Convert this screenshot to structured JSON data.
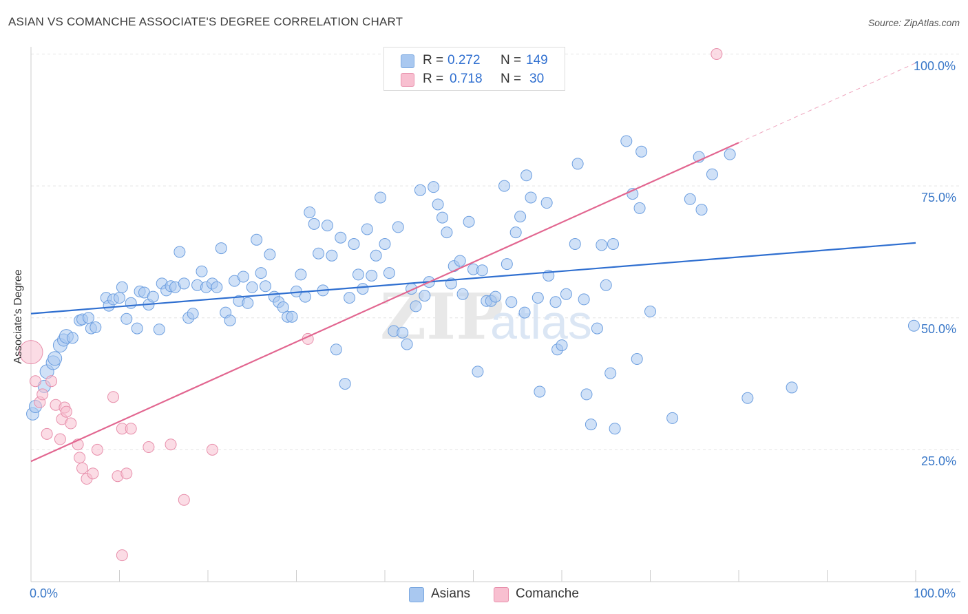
{
  "title": "ASIAN VS COMANCHE ASSOCIATE'S DEGREE CORRELATION CHART",
  "source": "Source: ZipAtlas.com",
  "legend_top": [
    {
      "r_label": "R = ",
      "r_value": "0.272",
      "n_label": "N = ",
      "n_value": "149",
      "color": "#a9c8f0",
      "border": "#7aa8e0"
    },
    {
      "r_label": "R = ",
      "r_value": "0.718",
      "n_label": "N = ",
      "n_value": "30",
      "color": "#f8bfd0",
      "border": "#e890ac"
    }
  ],
  "legend_bottom": [
    {
      "label": "Asians",
      "color": "#a9c8f0",
      "border": "#7aa8e0"
    },
    {
      "label": "Comanche",
      "color": "#f8bfd0",
      "border": "#e890ac"
    }
  ],
  "watermark": {
    "zip": "ZIP",
    "atlas": "atlas"
  },
  "chart_data": {
    "type": "scatter",
    "xlabel": "",
    "ylabel": "Associate's Degree",
    "x_tick_labels": [
      "0.0%",
      "100.0%"
    ],
    "y_tick_labels": [
      "25.0%",
      "50.0%",
      "75.0%",
      "100.0%"
    ],
    "xlim": [
      0,
      100
    ],
    "ylim": [
      0,
      100
    ],
    "y_ticks": [
      25,
      50,
      75,
      100
    ],
    "grid": true,
    "series": [
      {
        "name": "Asians",
        "color": "#a9c8f0",
        "edge": "#6d9fe0",
        "trend": {
          "x0": 0,
          "y0": 50.8,
          "x1": 100,
          "y1": 64.2,
          "color": "#2f6fd0"
        },
        "points": [
          [
            0.2,
            31.8,
            9
          ],
          [
            0.5,
            33.2,
            9
          ],
          [
            1.5,
            37.0,
            9
          ],
          [
            1.8,
            39.8,
            10
          ],
          [
            2.5,
            41.5,
            10
          ],
          [
            2.7,
            42.3,
            10
          ],
          [
            3.3,
            44.8,
            10
          ],
          [
            3.7,
            45.8,
            9
          ],
          [
            4.0,
            46.5,
            10
          ],
          [
            4.7,
            46.2,
            8
          ],
          [
            5.5,
            49.5,
            8
          ],
          [
            5.8,
            49.7,
            8
          ],
          [
            6.5,
            50.0,
            8
          ],
          [
            6.8,
            48.0,
            8
          ],
          [
            7.3,
            48.2,
            8
          ],
          [
            8.5,
            53.8,
            8
          ],
          [
            8.8,
            52.3,
            8
          ],
          [
            9.3,
            53.5,
            8
          ],
          [
            10.0,
            53.8,
            8
          ],
          [
            10.3,
            55.8,
            8
          ],
          [
            10.8,
            49.8,
            8
          ],
          [
            11.3,
            52.8,
            8
          ],
          [
            12.0,
            48.0,
            8
          ],
          [
            12.3,
            55.0,
            8
          ],
          [
            12.8,
            54.8,
            8
          ],
          [
            13.3,
            52.5,
            8
          ],
          [
            13.8,
            54.0,
            8
          ],
          [
            14.5,
            47.8,
            8
          ],
          [
            14.8,
            56.5,
            8
          ],
          [
            15.3,
            55.2,
            8
          ],
          [
            15.8,
            56.0,
            8
          ],
          [
            16.3,
            55.8,
            8
          ],
          [
            16.8,
            62.5,
            8
          ],
          [
            17.3,
            56.5,
            8
          ],
          [
            17.8,
            50.0,
            8
          ],
          [
            18.3,
            50.8,
            8
          ],
          [
            18.8,
            56.2,
            8
          ],
          [
            19.3,
            58.8,
            8
          ],
          [
            19.8,
            55.8,
            8
          ],
          [
            20.5,
            56.5,
            8
          ],
          [
            21.0,
            55.8,
            8
          ],
          [
            21.5,
            63.2,
            8
          ],
          [
            22.0,
            51.0,
            8
          ],
          [
            22.5,
            49.5,
            8
          ],
          [
            23.0,
            57.0,
            8
          ],
          [
            23.5,
            53.2,
            8
          ],
          [
            24.0,
            57.8,
            8
          ],
          [
            24.5,
            52.8,
            8
          ],
          [
            25.0,
            55.8,
            8
          ],
          [
            25.5,
            64.8,
            8
          ],
          [
            26.0,
            58.5,
            8
          ],
          [
            26.5,
            56.0,
            8
          ],
          [
            27.0,
            62.0,
            8
          ],
          [
            27.5,
            54.0,
            8
          ],
          [
            28.0,
            53.0,
            8
          ],
          [
            28.5,
            52.0,
            8
          ],
          [
            29.0,
            50.2,
            8
          ],
          [
            29.5,
            50.2,
            8
          ],
          [
            30.0,
            55.0,
            8
          ],
          [
            30.5,
            58.2,
            8
          ],
          [
            31.0,
            54.0,
            8
          ],
          [
            31.5,
            70.0,
            8
          ],
          [
            32.0,
            67.8,
            8
          ],
          [
            32.5,
            62.2,
            8
          ],
          [
            33.0,
            55.2,
            8
          ],
          [
            33.5,
            67.5,
            8
          ],
          [
            34.0,
            61.8,
            8
          ],
          [
            34.5,
            44.0,
            8
          ],
          [
            35.0,
            65.2,
            8
          ],
          [
            35.5,
            37.5,
            8
          ],
          [
            36.0,
            53.8,
            8
          ],
          [
            36.5,
            64.0,
            8
          ],
          [
            37.0,
            58.2,
            8
          ],
          [
            37.5,
            55.5,
            8
          ],
          [
            38.0,
            66.8,
            8
          ],
          [
            38.5,
            58.0,
            8
          ],
          [
            39.0,
            61.8,
            8
          ],
          [
            39.5,
            72.8,
            8
          ],
          [
            40.0,
            64.0,
            8
          ],
          [
            40.5,
            58.5,
            8
          ],
          [
            41.0,
            47.5,
            8
          ],
          [
            41.5,
            67.2,
            8
          ],
          [
            42.0,
            47.2,
            8
          ],
          [
            42.5,
            45.0,
            8
          ],
          [
            43.0,
            55.5,
            8
          ],
          [
            43.5,
            52.2,
            8
          ],
          [
            44.0,
            74.2,
            8
          ],
          [
            44.5,
            54.2,
            8
          ],
          [
            45.0,
            56.8,
            8
          ],
          [
            45.5,
            74.8,
            8
          ],
          [
            46.0,
            71.5,
            8
          ],
          [
            46.5,
            69.0,
            8
          ],
          [
            47.0,
            66.2,
            8
          ],
          [
            47.5,
            56.5,
            8
          ],
          [
            47.8,
            59.8,
            8
          ],
          [
            48.5,
            60.8,
            8
          ],
          [
            48.8,
            54.5,
            8
          ],
          [
            49.5,
            68.2,
            8
          ],
          [
            50.0,
            59.2,
            8
          ],
          [
            50.5,
            39.8,
            8
          ],
          [
            51.0,
            59.0,
            8
          ],
          [
            51.5,
            53.2,
            8
          ],
          [
            52.0,
            53.2,
            8
          ],
          [
            52.5,
            54.0,
            8
          ],
          [
            53.5,
            75.0,
            8
          ],
          [
            53.8,
            60.2,
            8
          ],
          [
            54.3,
            53.0,
            8
          ],
          [
            54.8,
            66.2,
            8
          ],
          [
            55.3,
            69.2,
            8
          ],
          [
            55.8,
            51.0,
            8
          ],
          [
            56.0,
            77.0,
            8
          ],
          [
            56.5,
            72.8,
            8
          ],
          [
            57.3,
            53.8,
            8
          ],
          [
            57.5,
            36.0,
            8
          ],
          [
            58.3,
            71.8,
            8
          ],
          [
            58.5,
            58.0,
            8
          ],
          [
            59.3,
            53.0,
            8
          ],
          [
            59.5,
            44.0,
            8
          ],
          [
            60.0,
            44.8,
            8
          ],
          [
            60.5,
            54.5,
            8
          ],
          [
            61.5,
            64.0,
            8
          ],
          [
            61.8,
            79.2,
            8
          ],
          [
            62.5,
            53.5,
            8
          ],
          [
            62.8,
            35.5,
            8
          ],
          [
            63.3,
            29.8,
            8
          ],
          [
            64.0,
            48.0,
            8
          ],
          [
            64.5,
            63.8,
            8
          ],
          [
            65.0,
            56.2,
            8
          ],
          [
            65.5,
            39.5,
            8
          ],
          [
            65.8,
            64.0,
            8
          ],
          [
            66.0,
            29.0,
            8
          ],
          [
            67.3,
            83.5,
            8
          ],
          [
            68.0,
            73.5,
            8
          ],
          [
            68.5,
            42.2,
            8
          ],
          [
            68.8,
            70.8,
            8
          ],
          [
            69.0,
            81.5,
            8
          ],
          [
            70.0,
            51.2,
            8
          ],
          [
            72.5,
            31.0,
            8
          ],
          [
            74.5,
            72.5,
            8
          ],
          [
            75.5,
            80.5,
            8
          ],
          [
            75.8,
            70.5,
            8
          ],
          [
            77.0,
            77.2,
            8
          ],
          [
            79.0,
            81.0,
            8
          ],
          [
            81.0,
            34.8,
            8
          ],
          [
            86.0,
            36.8,
            8
          ],
          [
            99.8,
            48.5,
            8
          ]
        ]
      },
      {
        "name": "Comanche",
        "color": "#f8bfd0",
        "edge": "#e890ac",
        "trend": {
          "x0": 0,
          "y0": 22.8,
          "x1": 80,
          "y1": 83.2,
          "dash_x1": 100,
          "dash_y1": 98.3,
          "color": "#e26690"
        },
        "points": [
          [
            0.0,
            43.5,
            17
          ],
          [
            0.5,
            38.0,
            8
          ],
          [
            1.0,
            34.0,
            8
          ],
          [
            1.3,
            35.5,
            8
          ],
          [
            1.8,
            28.0,
            8
          ],
          [
            2.3,
            38.0,
            8
          ],
          [
            2.8,
            33.5,
            8
          ],
          [
            3.3,
            27.0,
            8
          ],
          [
            3.5,
            30.8,
            8
          ],
          [
            3.8,
            33.0,
            8
          ],
          [
            4.0,
            32.2,
            8
          ],
          [
            4.5,
            30.0,
            8
          ],
          [
            5.3,
            26.0,
            8
          ],
          [
            5.5,
            23.5,
            8
          ],
          [
            5.8,
            21.5,
            8
          ],
          [
            6.3,
            19.5,
            8
          ],
          [
            7.0,
            20.5,
            8
          ],
          [
            7.5,
            25.0,
            8
          ],
          [
            9.3,
            35.0,
            8
          ],
          [
            9.8,
            20.0,
            8
          ],
          [
            10.3,
            29.0,
            8
          ],
          [
            10.8,
            20.5,
            8
          ],
          [
            11.3,
            29.0,
            8
          ],
          [
            13.3,
            25.5,
            8
          ],
          [
            15.8,
            26.0,
            8
          ],
          [
            17.3,
            15.5,
            8
          ],
          [
            20.5,
            25.0,
            8
          ],
          [
            31.3,
            46.0,
            8
          ],
          [
            10.3,
            5.0,
            8
          ],
          [
            77.5,
            100.0,
            8
          ]
        ]
      }
    ]
  }
}
